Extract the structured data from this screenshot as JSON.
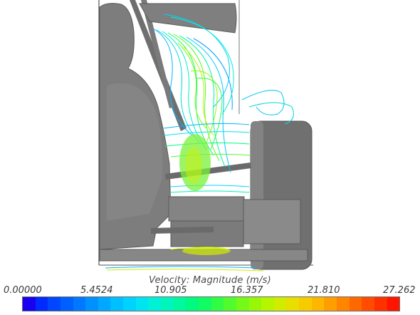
{
  "viewport": {
    "name": "cfd-streamline-view"
  },
  "legend": {
    "title": "Velocity: Magnitude (m/s)",
    "min": 0.0,
    "max": 27.262,
    "ticks": [
      "0.00000",
      "5.4524",
      "10.905",
      "16.357",
      "21.810",
      "27.262"
    ],
    "colors": [
      "#1a00f0",
      "#002bff",
      "#0047ff",
      "#0060ff",
      "#0078ff",
      "#0090ff",
      "#00a8ff",
      "#00bfff",
      "#00d2ff",
      "#00e4f2",
      "#00f0d8",
      "#00f5bc",
      "#00f89e",
      "#00fa80",
      "#10fc62",
      "#30fc46",
      "#52fb2c",
      "#74fa16",
      "#96f808",
      "#b6f400",
      "#d2ec00",
      "#e8de00",
      "#f6cc00",
      "#ffb600",
      "#ff9e00",
      "#ff8400",
      "#ff6800",
      "#ff4c00",
      "#ff3000",
      "#ff1400"
    ]
  }
}
